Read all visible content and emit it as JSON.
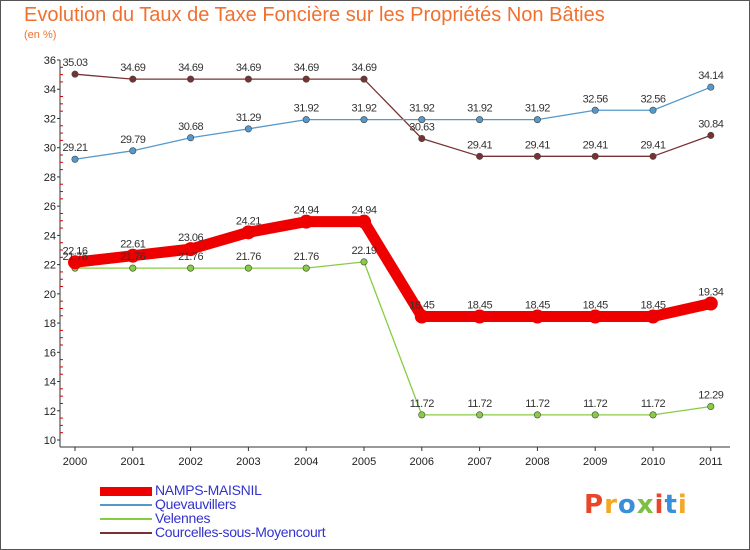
{
  "header": {
    "title": "Evolution du Taux de Taxe Foncière sur les Propriétés Non Bâties",
    "unit": "(en %)"
  },
  "logo": {
    "text": "Proxiti",
    "colors": [
      "#e8462a",
      "#f5a623",
      "#3a8fd8",
      "#7bc043",
      "#e8462a",
      "#3a8fd8",
      "#f5a623"
    ]
  },
  "chart_data": {
    "type": "line",
    "x": [
      "2000",
      "2001",
      "2002",
      "2003",
      "2004",
      "2005",
      "2006",
      "2007",
      "2008",
      "2009",
      "2010",
      "2011"
    ],
    "ylim": [
      10,
      36
    ],
    "yticks": [
      "10",
      "12",
      "14",
      "16",
      "18",
      "20",
      "22",
      "24",
      "26",
      "28",
      "30",
      "32",
      "34",
      "36"
    ],
    "grid": false,
    "legend_position": "bottom-left",
    "series": [
      {
        "name": "NAMPS-MAISNIL",
        "color": "#ee0000",
        "values": [
          22.16,
          22.61,
          23.06,
          24.21,
          24.94,
          24.94,
          18.45,
          18.45,
          18.45,
          18.45,
          18.45,
          19.34
        ],
        "labels": [
          "22.16",
          "22.61",
          "23.06",
          "24.21",
          "24.94",
          "24.94",
          "18.45",
          "18.45",
          "18.45",
          "18.45",
          "18.45",
          "19.34"
        ]
      },
      {
        "name": "Quevauvillers",
        "color": "#5599cc",
        "values": [
          29.21,
          29.79,
          30.68,
          31.29,
          31.92,
          31.92,
          31.92,
          31.92,
          31.92,
          32.56,
          32.56,
          34.14
        ],
        "labels": [
          "29.21",
          "29.79",
          "30.68",
          "31.29",
          "31.92",
          "31.92",
          "31.92",
          "31.92",
          "31.92",
          "32.56",
          "32.56",
          "34.14"
        ]
      },
      {
        "name": "Velennes",
        "color": "#88cc44",
        "values": [
          21.76,
          21.76,
          21.76,
          21.76,
          21.76,
          22.19,
          11.72,
          11.72,
          11.72,
          11.72,
          11.72,
          12.29
        ],
        "labels": [
          "21.76",
          "21.76",
          "21.76",
          "21.76",
          "21.76",
          "22.19",
          "11.72",
          "11.72",
          "11.72",
          "11.72",
          "11.72",
          "12.29"
        ]
      },
      {
        "name": "Courcelles-sous-Moyencourt",
        "color": "#773333",
        "values": [
          35.03,
          34.69,
          34.69,
          34.69,
          34.69,
          34.69,
          30.63,
          29.41,
          29.41,
          29.41,
          29.41,
          30.84
        ],
        "labels": [
          "35.03",
          "34.69",
          "34.69",
          "34.69",
          "34.69",
          "34.69",
          "30.63",
          "29.41",
          "29.41",
          "29.41",
          "29.41",
          "30.84"
        ]
      }
    ]
  }
}
